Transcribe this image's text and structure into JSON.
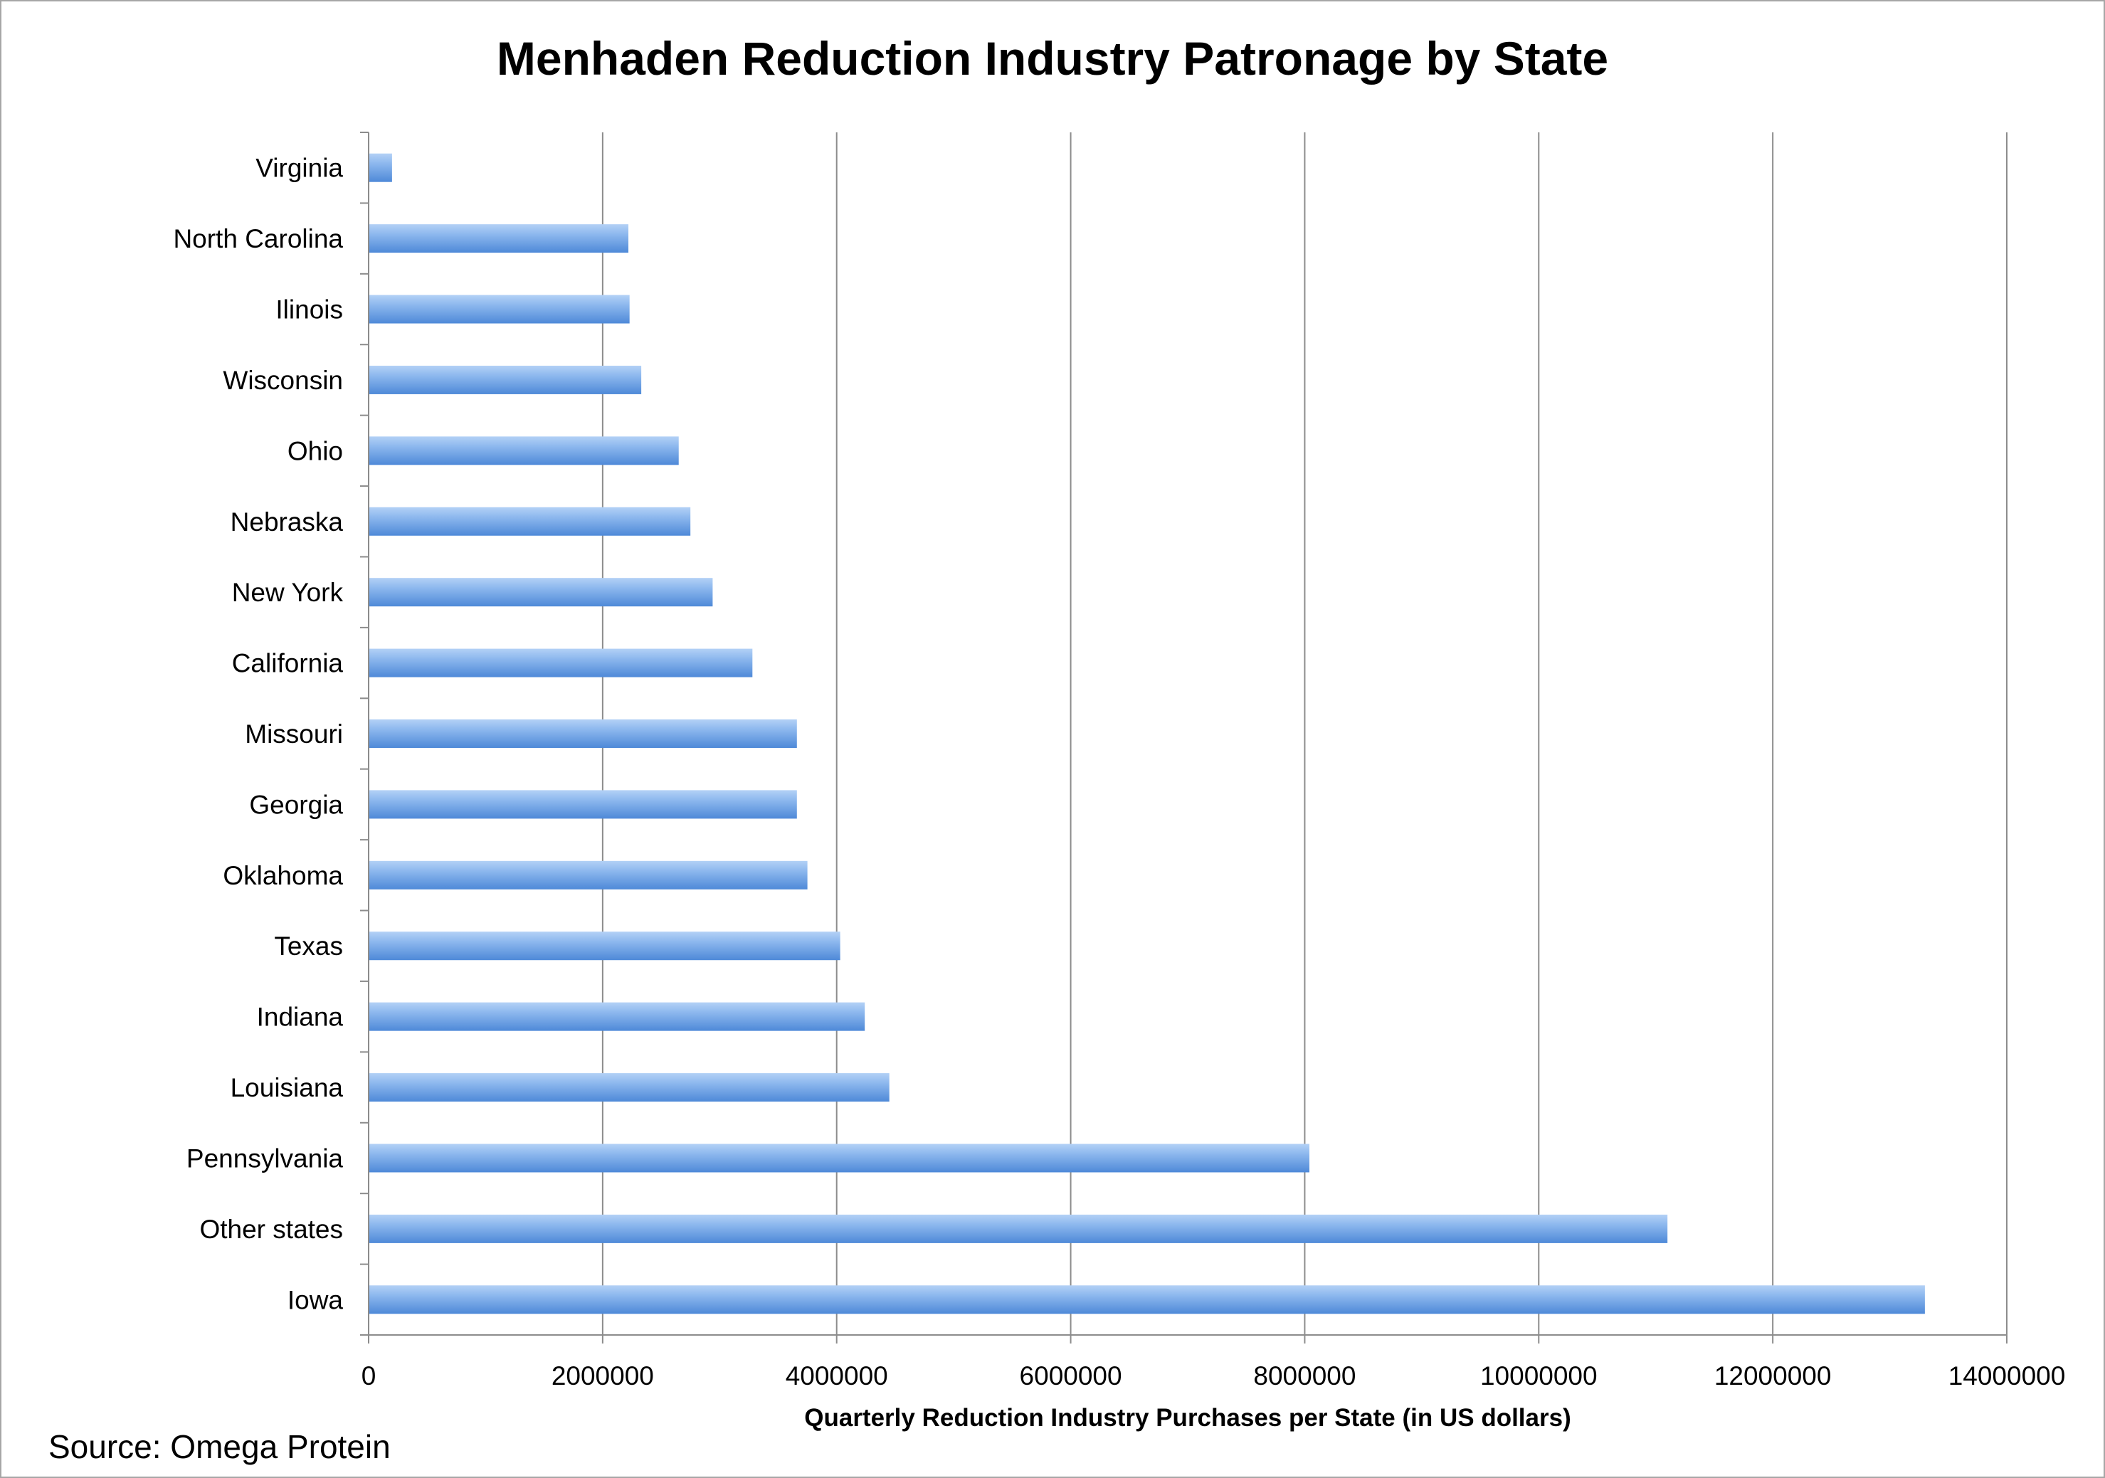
{
  "title": "Menhaden Reduction Industry Patronage by State",
  "source": "Source: Omega Protein",
  "colors": {
    "bar_top": "#9ec3f1",
    "bar_mid": "#6fa3e6",
    "bar_bottom": "#4a86d6",
    "grid": "#8c8c8c",
    "axis": "#8c8c8c"
  },
  "chart_data": {
    "type": "bar",
    "orientation": "horizontal",
    "categories": [
      "Virginia",
      "North Carolina",
      "Ilinois",
      "Wisconsin",
      "Ohio",
      "Nebraska",
      "New York",
      "California",
      "Missouri",
      "Georgia",
      "Oklahoma",
      "Texas",
      "Indiana",
      "Louisiana",
      "Pennsylvania",
      "Other states",
      "Iowa"
    ],
    "values": [
      200000,
      2220000,
      2230000,
      2330000,
      2650000,
      2750000,
      2940000,
      3280000,
      3660000,
      3660000,
      3750000,
      4030000,
      4240000,
      4450000,
      8040000,
      11100000,
      13300000
    ],
    "xlabel": "Quarterly Reduction Industry Purchases per State (in US dollars)",
    "ylabel": "",
    "xlim": [
      0,
      14000000
    ],
    "xticks": [
      "0",
      "2000000",
      "4000000",
      "6000000",
      "8000000",
      "10000000",
      "12000000",
      "14000000"
    ],
    "grid": "vertical major gridlines",
    "legend": "none"
  }
}
